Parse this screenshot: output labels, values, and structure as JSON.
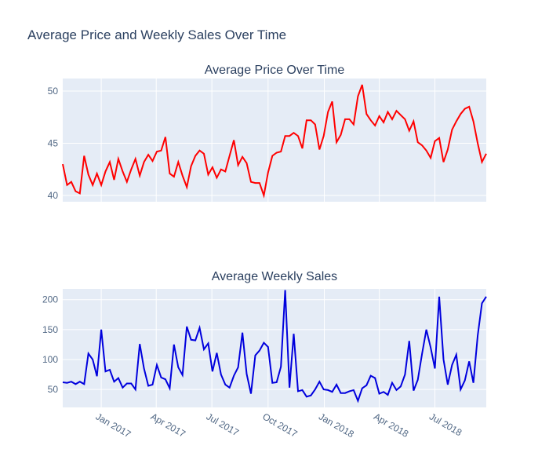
{
  "title": "Average Price and Weekly Sales Over Time",
  "chart_data": [
    {
      "type": "line",
      "title": "Average Price Over Time",
      "x": [
        "2016-10-30",
        "2016-11-06",
        "2016-11-13",
        "2016-11-20",
        "2016-11-27",
        "2016-12-04",
        "2016-12-11",
        "2016-12-18",
        "2016-12-25",
        "2017-01-01",
        "2017-01-08",
        "2017-01-15",
        "2017-01-22",
        "2017-01-29",
        "2017-02-05",
        "2017-02-12",
        "2017-02-19",
        "2017-02-26",
        "2017-03-05",
        "2017-03-12",
        "2017-03-19",
        "2017-03-26",
        "2017-04-02",
        "2017-04-09",
        "2017-04-16",
        "2017-04-23",
        "2017-04-30",
        "2017-05-07",
        "2017-05-14",
        "2017-05-21",
        "2017-05-28",
        "2017-06-04",
        "2017-06-11",
        "2017-06-18",
        "2017-06-25",
        "2017-07-02",
        "2017-07-09",
        "2017-07-16",
        "2017-07-23",
        "2017-07-30",
        "2017-08-06",
        "2017-08-13",
        "2017-08-20",
        "2017-08-27",
        "2017-09-03",
        "2017-09-10",
        "2017-09-17",
        "2017-09-24",
        "2017-10-01",
        "2017-10-08",
        "2017-10-15",
        "2017-10-22",
        "2017-10-29",
        "2017-11-05",
        "2017-11-12",
        "2017-11-19",
        "2017-11-26",
        "2017-12-03",
        "2017-12-10",
        "2017-12-17",
        "2017-12-24",
        "2017-12-31",
        "2018-01-07",
        "2018-01-14",
        "2018-01-21",
        "2018-01-28",
        "2018-02-04",
        "2018-02-11",
        "2018-02-18",
        "2018-02-25",
        "2018-03-04",
        "2018-03-11",
        "2018-03-18",
        "2018-03-25",
        "2018-04-01",
        "2018-04-08",
        "2018-04-15",
        "2018-04-22",
        "2018-04-29",
        "2018-05-06",
        "2018-05-13",
        "2018-05-20",
        "2018-05-27",
        "2018-06-03",
        "2018-06-10",
        "2018-06-17",
        "2018-06-24",
        "2018-07-01",
        "2018-07-08",
        "2018-07-15",
        "2018-07-22",
        "2018-07-29",
        "2018-08-05",
        "2018-08-12",
        "2018-08-19",
        "2018-08-26",
        "2018-09-02",
        "2018-09-09",
        "2018-09-16",
        "2018-09-23"
      ],
      "series": [
        {
          "name": "Average Price",
          "color": "#ff0000",
          "values": [
            43,
            41,
            41.3,
            40.4,
            40.2,
            43.8,
            42,
            41,
            42.1,
            41,
            42.3,
            43.2,
            41.5,
            43.5,
            42.3,
            41.3,
            42.5,
            43.5,
            41.9,
            43.2,
            43.9,
            43.3,
            44.2,
            44.3,
            45.6,
            42.1,
            41.8,
            43.2,
            41.9,
            40.8,
            42.8,
            43.8,
            44.3,
            44,
            42,
            42.7,
            41.7,
            42.5,
            42.3,
            43.8,
            45.3,
            42.9,
            43.7,
            43.1,
            41.3,
            41.2,
            41.2,
            40,
            42.2,
            43.8,
            44.1,
            44.2,
            45.7,
            45.7,
            46,
            45.7,
            44.5,
            47.2,
            47.2,
            46.8,
            44.4,
            45.7,
            48,
            49,
            45.1,
            45.8,
            47.3,
            47.3,
            46.8,
            49.5,
            50.6,
            47.8,
            47.2,
            46.7,
            47.6,
            47,
            48,
            47.3,
            48.1,
            47.7,
            47.3,
            46.2,
            47.1,
            45.1,
            44.8,
            44.3,
            43.6,
            45.2,
            45.5,
            43.2,
            44.4,
            46.3,
            47.1,
            47.8,
            48.3,
            48.5,
            47.1,
            45,
            43.2,
            44
          ]
        }
      ],
      "xlim": [
        "2016-10-30",
        "2018-09-23"
      ],
      "ylim": [
        39.4,
        51.2
      ],
      "yticks": [
        40,
        45,
        50
      ],
      "grid": true
    },
    {
      "type": "line",
      "title": "Average Weekly Sales",
      "x": [
        "2016-10-30",
        "2016-11-06",
        "2016-11-13",
        "2016-11-20",
        "2016-11-27",
        "2016-12-04",
        "2016-12-11",
        "2016-12-18",
        "2016-12-25",
        "2017-01-01",
        "2017-01-08",
        "2017-01-15",
        "2017-01-22",
        "2017-01-29",
        "2017-02-05",
        "2017-02-12",
        "2017-02-19",
        "2017-02-26",
        "2017-03-05",
        "2017-03-12",
        "2017-03-19",
        "2017-03-26",
        "2017-04-02",
        "2017-04-09",
        "2017-04-16",
        "2017-04-23",
        "2017-04-30",
        "2017-05-07",
        "2017-05-14",
        "2017-05-21",
        "2017-05-28",
        "2017-06-04",
        "2017-06-11",
        "2017-06-18",
        "2017-06-25",
        "2017-07-02",
        "2017-07-09",
        "2017-07-16",
        "2017-07-23",
        "2017-07-30",
        "2017-08-06",
        "2017-08-13",
        "2017-08-20",
        "2017-08-27",
        "2017-09-03",
        "2017-09-10",
        "2017-09-17",
        "2017-09-24",
        "2017-10-01",
        "2017-10-08",
        "2017-10-15",
        "2017-10-22",
        "2017-10-29",
        "2017-11-05",
        "2017-11-12",
        "2017-11-19",
        "2017-11-26",
        "2017-12-03",
        "2017-12-10",
        "2017-12-17",
        "2017-12-24",
        "2017-12-31",
        "2018-01-07",
        "2018-01-14",
        "2018-01-21",
        "2018-01-28",
        "2018-02-04",
        "2018-02-11",
        "2018-02-18",
        "2018-02-25",
        "2018-03-04",
        "2018-03-11",
        "2018-03-18",
        "2018-03-25",
        "2018-04-01",
        "2018-04-08",
        "2018-04-15",
        "2018-04-22",
        "2018-04-29",
        "2018-05-06",
        "2018-05-13",
        "2018-05-20",
        "2018-05-27",
        "2018-06-03",
        "2018-06-10",
        "2018-06-17",
        "2018-06-24",
        "2018-07-01",
        "2018-07-08",
        "2018-07-15",
        "2018-07-22",
        "2018-07-29",
        "2018-08-05",
        "2018-08-12",
        "2018-08-19",
        "2018-08-26",
        "2018-09-02",
        "2018-09-09",
        "2018-09-16",
        "2018-09-23"
      ],
      "series": [
        {
          "name": "Average Weekly Sales",
          "color": "#0000dd",
          "values": [
            62,
            61,
            63,
            59,
            63,
            59,
            110,
            100,
            72,
            150,
            80,
            83,
            63,
            69,
            53,
            60,
            60,
            50,
            126,
            85,
            56,
            58,
            91,
            70,
            67,
            52,
            125,
            87,
            74,
            155,
            133,
            132,
            153,
            117,
            127,
            80,
            111,
            75,
            58,
            53,
            73,
            87,
            145,
            76,
            43,
            107,
            115,
            128,
            121,
            61,
            62,
            88,
            216,
            53,
            143,
            47,
            49,
            38,
            40,
            50,
            63,
            50,
            49,
            46,
            58,
            44,
            44,
            47,
            49,
            31,
            52,
            57,
            73,
            69,
            43,
            46,
            41,
            61,
            49,
            55,
            75,
            131,
            48,
            66,
            110,
            150,
            120,
            85,
            205,
            100,
            58,
            91,
            108,
            50,
            65,
            97,
            61,
            140,
            194,
            205
          ]
        }
      ],
      "xlim": [
        "2016-10-30",
        "2018-09-23"
      ],
      "xticks": [
        {
          "value": "2017-01-01",
          "label": "Jan 2017"
        },
        {
          "value": "2017-04-01",
          "label": "Apr 2017"
        },
        {
          "value": "2017-07-01",
          "label": "Jul 2017"
        },
        {
          "value": "2017-10-01",
          "label": "Oct 2017"
        },
        {
          "value": "2018-01-01",
          "label": "Jan 2018"
        },
        {
          "value": "2018-04-01",
          "label": "Apr 2018"
        },
        {
          "value": "2018-07-01",
          "label": "Jul 2018"
        }
      ],
      "ylim": [
        20,
        218
      ],
      "yticks": [
        50,
        100,
        150,
        200
      ],
      "grid": true
    }
  ]
}
